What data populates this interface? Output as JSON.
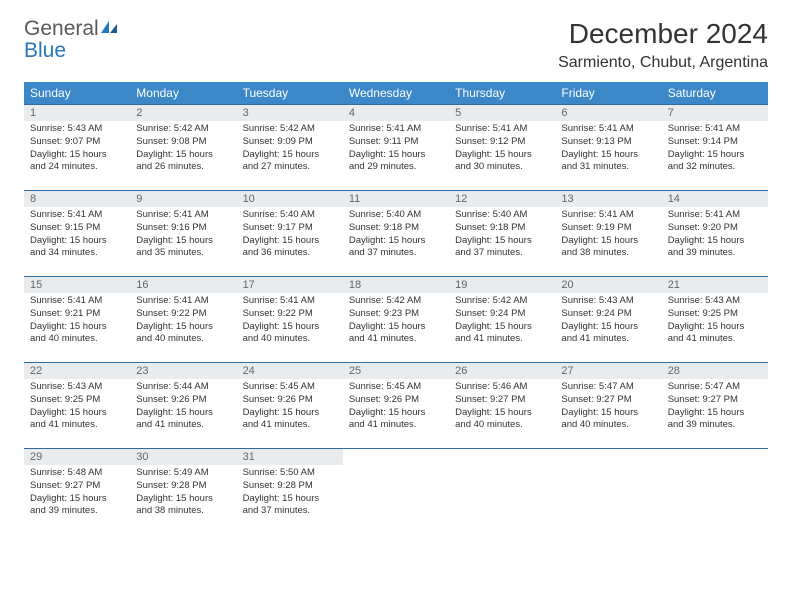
{
  "logo": {
    "text1": "General",
    "text2": "Blue"
  },
  "title": "December 2024",
  "location": "Sarmiento, Chubut, Argentina",
  "colors": {
    "header_bg": "#3b87c8",
    "row_divider": "#2a6ca3",
    "daynum_bg": "#e8ecef",
    "brand_gray": "#5a5a5a",
    "brand_blue": "#2a77b8"
  },
  "dayNames": [
    "Sunday",
    "Monday",
    "Tuesday",
    "Wednesday",
    "Thursday",
    "Friday",
    "Saturday"
  ],
  "weeks": [
    [
      {
        "n": "1",
        "sr": "5:43 AM",
        "ss": "9:07 PM",
        "dl": "15 hours and 24 minutes."
      },
      {
        "n": "2",
        "sr": "5:42 AM",
        "ss": "9:08 PM",
        "dl": "15 hours and 26 minutes."
      },
      {
        "n": "3",
        "sr": "5:42 AM",
        "ss": "9:09 PM",
        "dl": "15 hours and 27 minutes."
      },
      {
        "n": "4",
        "sr": "5:41 AM",
        "ss": "9:11 PM",
        "dl": "15 hours and 29 minutes."
      },
      {
        "n": "5",
        "sr": "5:41 AM",
        "ss": "9:12 PM",
        "dl": "15 hours and 30 minutes."
      },
      {
        "n": "6",
        "sr": "5:41 AM",
        "ss": "9:13 PM",
        "dl": "15 hours and 31 minutes."
      },
      {
        "n": "7",
        "sr": "5:41 AM",
        "ss": "9:14 PM",
        "dl": "15 hours and 32 minutes."
      }
    ],
    [
      {
        "n": "8",
        "sr": "5:41 AM",
        "ss": "9:15 PM",
        "dl": "15 hours and 34 minutes."
      },
      {
        "n": "9",
        "sr": "5:41 AM",
        "ss": "9:16 PM",
        "dl": "15 hours and 35 minutes."
      },
      {
        "n": "10",
        "sr": "5:40 AM",
        "ss": "9:17 PM",
        "dl": "15 hours and 36 minutes."
      },
      {
        "n": "11",
        "sr": "5:40 AM",
        "ss": "9:18 PM",
        "dl": "15 hours and 37 minutes."
      },
      {
        "n": "12",
        "sr": "5:40 AM",
        "ss": "9:18 PM",
        "dl": "15 hours and 37 minutes."
      },
      {
        "n": "13",
        "sr": "5:41 AM",
        "ss": "9:19 PM",
        "dl": "15 hours and 38 minutes."
      },
      {
        "n": "14",
        "sr": "5:41 AM",
        "ss": "9:20 PM",
        "dl": "15 hours and 39 minutes."
      }
    ],
    [
      {
        "n": "15",
        "sr": "5:41 AM",
        "ss": "9:21 PM",
        "dl": "15 hours and 40 minutes."
      },
      {
        "n": "16",
        "sr": "5:41 AM",
        "ss": "9:22 PM",
        "dl": "15 hours and 40 minutes."
      },
      {
        "n": "17",
        "sr": "5:41 AM",
        "ss": "9:22 PM",
        "dl": "15 hours and 40 minutes."
      },
      {
        "n": "18",
        "sr": "5:42 AM",
        "ss": "9:23 PM",
        "dl": "15 hours and 41 minutes."
      },
      {
        "n": "19",
        "sr": "5:42 AM",
        "ss": "9:24 PM",
        "dl": "15 hours and 41 minutes."
      },
      {
        "n": "20",
        "sr": "5:43 AM",
        "ss": "9:24 PM",
        "dl": "15 hours and 41 minutes."
      },
      {
        "n": "21",
        "sr": "5:43 AM",
        "ss": "9:25 PM",
        "dl": "15 hours and 41 minutes."
      }
    ],
    [
      {
        "n": "22",
        "sr": "5:43 AM",
        "ss": "9:25 PM",
        "dl": "15 hours and 41 minutes."
      },
      {
        "n": "23",
        "sr": "5:44 AM",
        "ss": "9:26 PM",
        "dl": "15 hours and 41 minutes."
      },
      {
        "n": "24",
        "sr": "5:45 AM",
        "ss": "9:26 PM",
        "dl": "15 hours and 41 minutes."
      },
      {
        "n": "25",
        "sr": "5:45 AM",
        "ss": "9:26 PM",
        "dl": "15 hours and 41 minutes."
      },
      {
        "n": "26",
        "sr": "5:46 AM",
        "ss": "9:27 PM",
        "dl": "15 hours and 40 minutes."
      },
      {
        "n": "27",
        "sr": "5:47 AM",
        "ss": "9:27 PM",
        "dl": "15 hours and 40 minutes."
      },
      {
        "n": "28",
        "sr": "5:47 AM",
        "ss": "9:27 PM",
        "dl": "15 hours and 39 minutes."
      }
    ],
    [
      {
        "n": "29",
        "sr": "5:48 AM",
        "ss": "9:27 PM",
        "dl": "15 hours and 39 minutes."
      },
      {
        "n": "30",
        "sr": "5:49 AM",
        "ss": "9:28 PM",
        "dl": "15 hours and 38 minutes."
      },
      {
        "n": "31",
        "sr": "5:50 AM",
        "ss": "9:28 PM",
        "dl": "15 hours and 37 minutes."
      },
      null,
      null,
      null,
      null
    ]
  ],
  "labels": {
    "sunrise": "Sunrise:",
    "sunset": "Sunset:",
    "daylight": "Daylight:"
  }
}
